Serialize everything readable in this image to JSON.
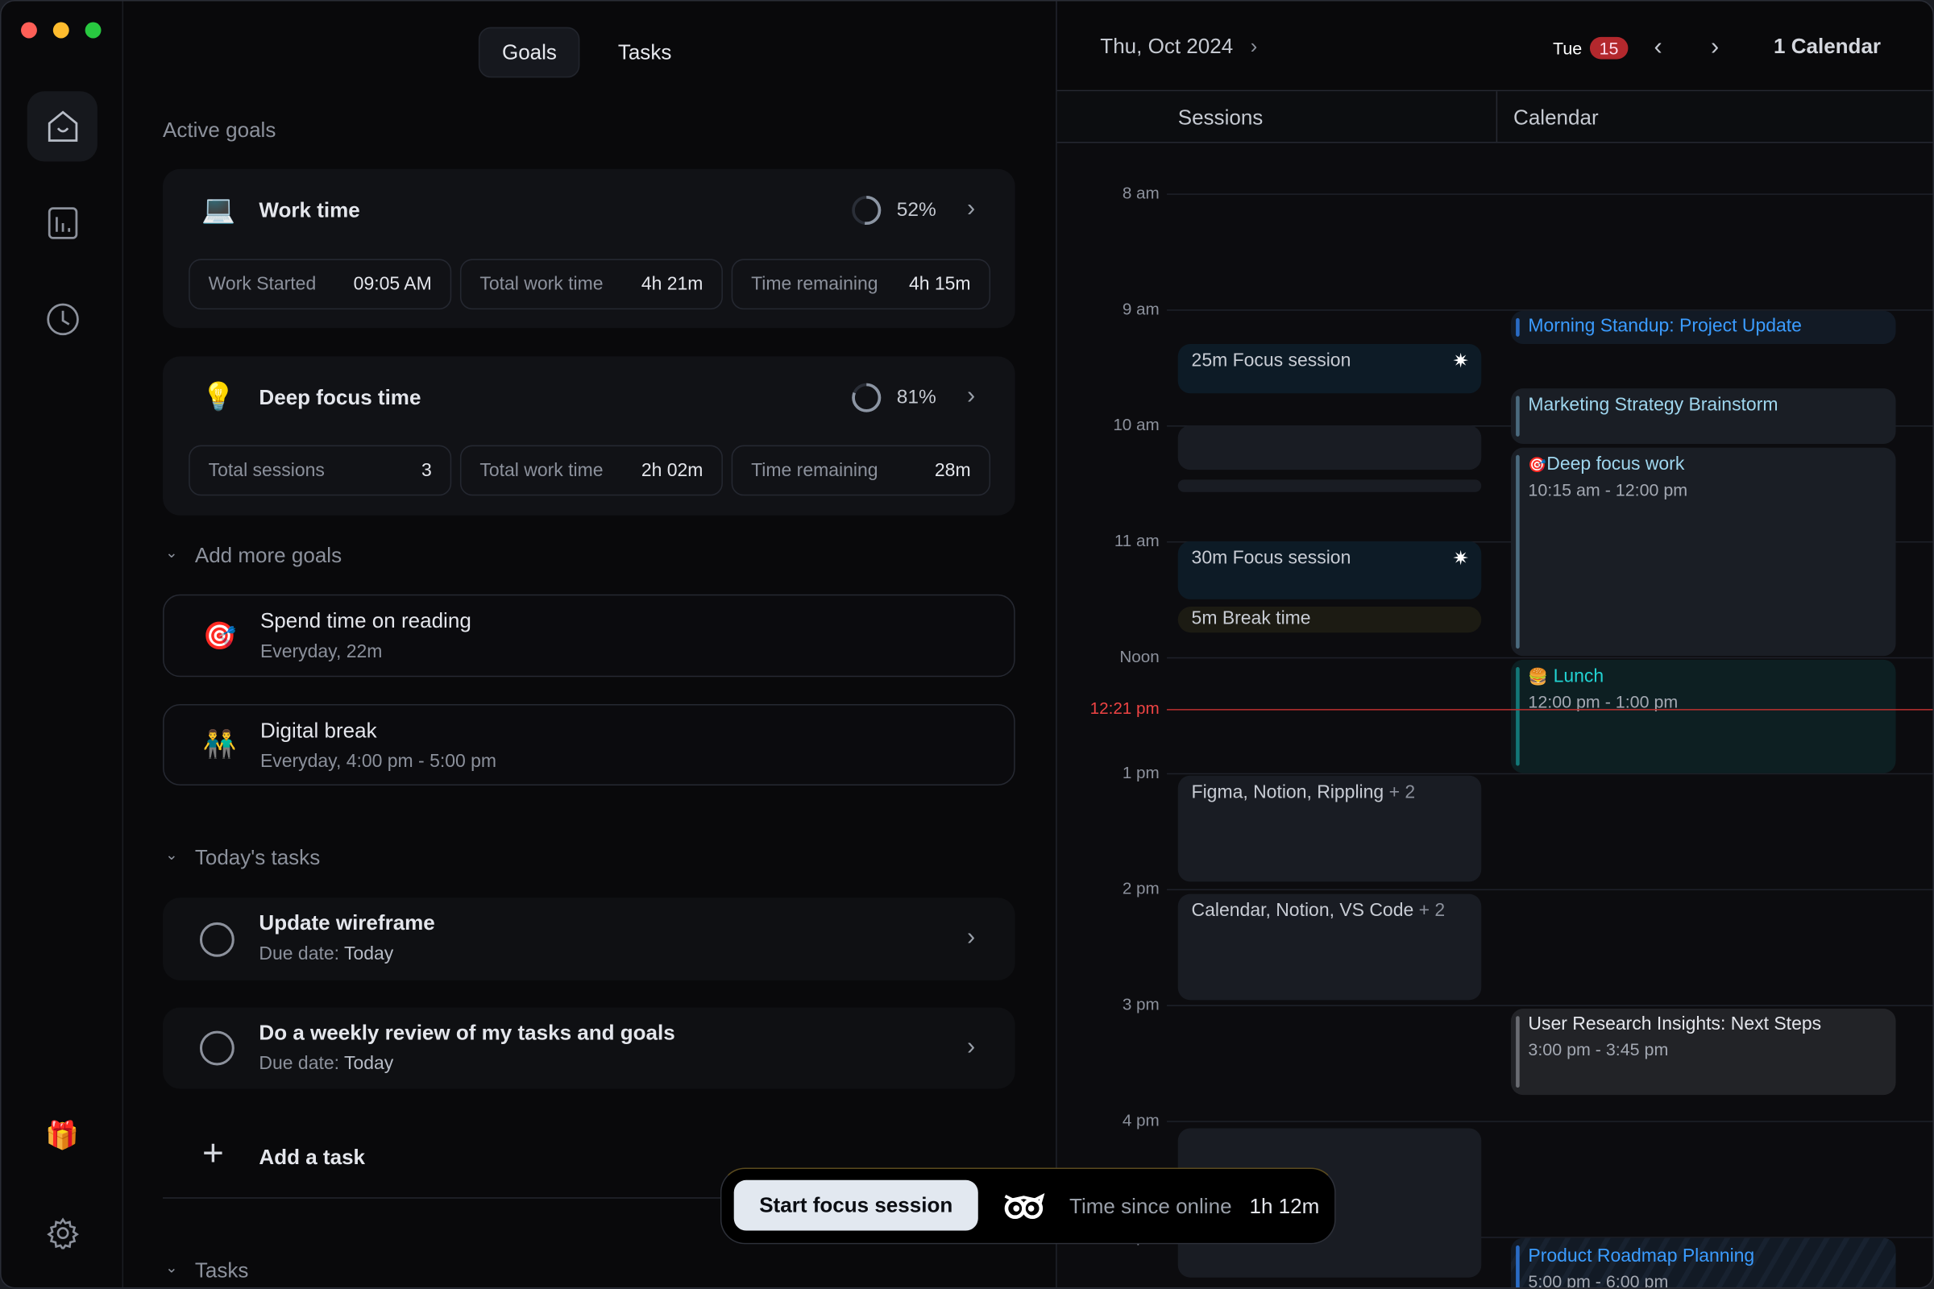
{
  "window": {
    "controls": [
      "close",
      "minimize",
      "maximize"
    ]
  },
  "sidebar": {
    "items": [
      {
        "icon": "home-icon",
        "active": true
      },
      {
        "icon": "chart-icon"
      },
      {
        "icon": "clock-icon"
      }
    ],
    "bottom": [
      {
        "icon": "gift-icon",
        "glyph": "🎁"
      },
      {
        "icon": "gear-icon"
      }
    ]
  },
  "tabs": [
    {
      "label": "Goals",
      "active": true
    },
    {
      "label": "Tasks"
    }
  ],
  "active_goals": {
    "heading": "Active goals",
    "goals": [
      {
        "emoji": "💻",
        "title": "Work time",
        "progress_percent": 52,
        "progress_label": "52%",
        "stats": [
          {
            "label": "Work Started",
            "value": "09:05 AM"
          },
          {
            "label": "Total work time",
            "value": "4h 21m"
          },
          {
            "label": "Time remaining",
            "value": "4h 15m"
          }
        ]
      },
      {
        "emoji": "💡",
        "title": "Deep focus time",
        "progress_percent": 81,
        "progress_label": "81%",
        "stats": [
          {
            "label": "Total sessions",
            "value": "3"
          },
          {
            "label": "Total work time",
            "value": "2h 02m"
          },
          {
            "label": "Time remaining",
            "value": "28m"
          }
        ]
      }
    ]
  },
  "more_goals": {
    "heading": "Add more goals",
    "items": [
      {
        "emoji": "🎯",
        "title": "Spend time on reading",
        "subtitle": "Everyday, 22m"
      },
      {
        "emoji": "👬",
        "title": "Digital break",
        "subtitle": "Everyday, 4:00 pm - 5:00 pm"
      }
    ]
  },
  "todays_tasks": {
    "heading": "Today's tasks",
    "due_label": "Due date:",
    "items": [
      {
        "title": "Update wireframe",
        "due": "Today",
        "done": false
      },
      {
        "title": "Do a weekly review of my tasks and goals",
        "due": "Today",
        "done": false
      }
    ],
    "add_label": "Add a task"
  },
  "tasks_section": {
    "heading": "Tasks"
  },
  "focus_bar": {
    "button": "Start focus session",
    "online_label": "Time since online",
    "online_value": "1h 12m"
  },
  "calendar": {
    "date_label": "Thu, Oct 2024",
    "day_label": "Tue",
    "day_badge": "15",
    "calendars_label": "1 Calendar",
    "columns": [
      "Sessions",
      "Calendar"
    ],
    "hours": [
      "8 am",
      "9 am",
      "10 am",
      "11 am",
      "Noon",
      "1 pm",
      "2 pm",
      "3 pm",
      "4 pm",
      "5 pm"
    ],
    "now_label": "12:21 pm",
    "sessions": [
      {
        "label": "25m Focus session",
        "icon": "sparkle-icon"
      },
      {
        "label": ""
      },
      {
        "label": ""
      },
      {
        "label": "30m Focus session",
        "icon": "sparkle-icon"
      },
      {
        "label": "5m Break time"
      },
      {
        "label": "Figma, Notion, Rippling",
        "extra": "+ 2"
      },
      {
        "label": "Calendar, Notion, VS Code",
        "extra": "+ 2"
      },
      {
        "label": ""
      }
    ],
    "events": [
      {
        "title": "Morning Standup: Project Update",
        "time": "",
        "color": "#3b9cff"
      },
      {
        "title": "Marketing Strategy Brainstorm",
        "time": "",
        "color": "#9fd6ee"
      },
      {
        "emoji": "🎯",
        "title": "Deep focus work",
        "time": "10:15 am - 12:00 pm",
        "color": "#9fd6ee"
      },
      {
        "emoji": "🍔",
        "title": "Lunch",
        "time": "12:00 pm - 1:00 pm",
        "color": "#22d3d3"
      },
      {
        "title": "User Research Insights: Next Steps",
        "time": "3:00 pm - 3:45 pm",
        "color": "#e4e6ec"
      },
      {
        "title": "Product Roadmap Planning",
        "time": "5:00 pm - 6:00 pm",
        "color": "#3b9cff"
      }
    ]
  }
}
